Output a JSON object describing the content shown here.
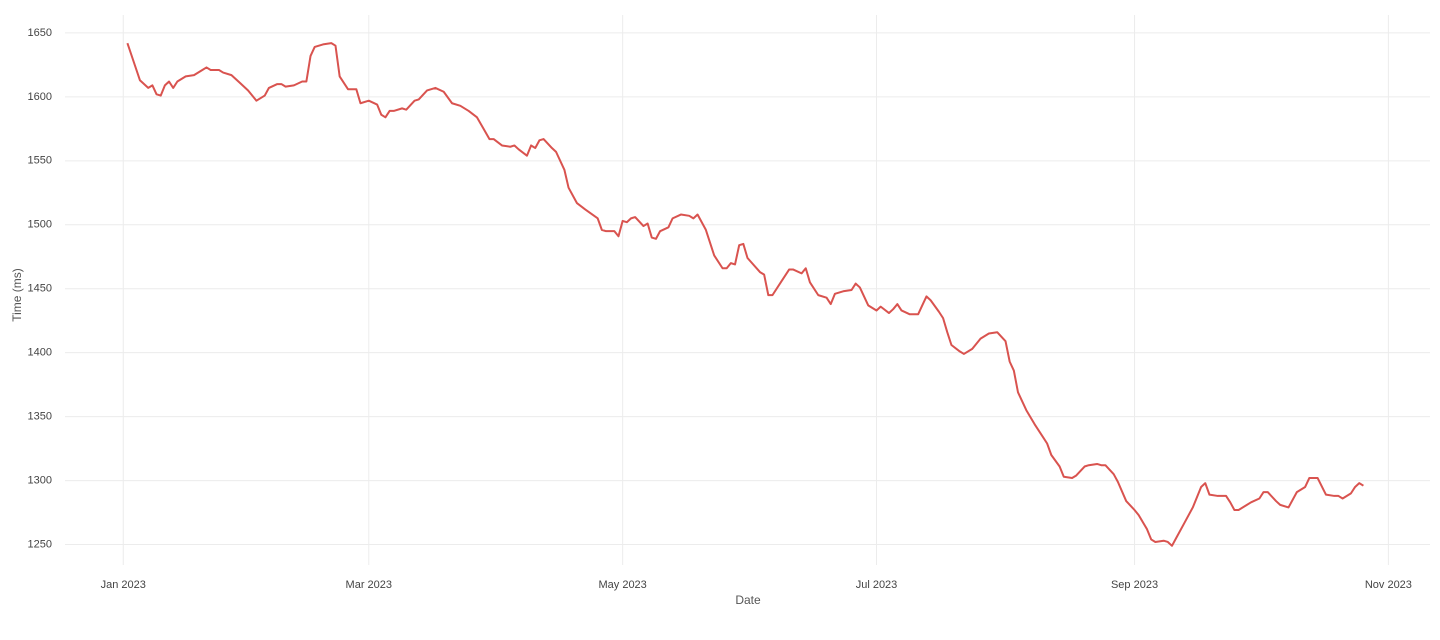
{
  "chart_data": {
    "type": "line",
    "x_label": "Date",
    "y_label": "Time (ms)",
    "xlim": [
      "2022-12-18",
      "2023-11-11"
    ],
    "xticks": [
      {
        "value": "2023-01-01",
        "label": "Jan 2023"
      },
      {
        "value": "2023-03-01",
        "label": "Mar 2023"
      },
      {
        "value": "2023-05-01",
        "label": "May 2023"
      },
      {
        "value": "2023-07-01",
        "label": "Jul 2023"
      },
      {
        "value": "2023-09-01",
        "label": "Sep 2023"
      },
      {
        "value": "2023-11-01",
        "label": "Nov 2023"
      }
    ],
    "ylim": [
      1234,
      1664
    ],
    "yticks": [
      1250,
      1300,
      1350,
      1400,
      1450,
      1500,
      1550,
      1600,
      1650
    ],
    "grid": true,
    "x": [
      "2023-01-02",
      "2023-01-05",
      "2023-01-07",
      "2023-01-08",
      "2023-01-09",
      "2023-01-10",
      "2023-01-11",
      "2023-01-12",
      "2023-01-13",
      "2023-01-14",
      "2023-01-16",
      "2023-01-18",
      "2023-01-20",
      "2023-01-21",
      "2023-01-22",
      "2023-01-24",
      "2023-01-25",
      "2023-01-27",
      "2023-01-29",
      "2023-01-31",
      "2023-02-02",
      "2023-02-04",
      "2023-02-05",
      "2023-02-07",
      "2023-02-08",
      "2023-02-09",
      "2023-02-11",
      "2023-02-13",
      "2023-02-14",
      "2023-02-15",
      "2023-02-16",
      "2023-02-18",
      "2023-02-20",
      "2023-02-21",
      "2023-02-22",
      "2023-02-24",
      "2023-02-26",
      "2023-02-27",
      "2023-03-01",
      "2023-03-03",
      "2023-03-04",
      "2023-03-05",
      "2023-03-06",
      "2023-03-07",
      "2023-03-09",
      "2023-03-10",
      "2023-03-12",
      "2023-03-13",
      "2023-03-15",
      "2023-03-17",
      "2023-03-19",
      "2023-03-21",
      "2023-03-23",
      "2023-03-25",
      "2023-03-27",
      "2023-03-30",
      "2023-03-31",
      "2023-04-02",
      "2023-04-04",
      "2023-04-05",
      "2023-04-06",
      "2023-04-08",
      "2023-04-09",
      "2023-04-10",
      "2023-04-11",
      "2023-04-12",
      "2023-04-14",
      "2023-04-15",
      "2023-04-17",
      "2023-04-18",
      "2023-04-20",
      "2023-04-22",
      "2023-04-25",
      "2023-04-26",
      "2023-04-27",
      "2023-04-29",
      "2023-04-30",
      "2023-05-01",
      "2023-05-02",
      "2023-05-03",
      "2023-05-04",
      "2023-05-06",
      "2023-05-07",
      "2023-05-08",
      "2023-05-09",
      "2023-05-10",
      "2023-05-12",
      "2023-05-13",
      "2023-05-15",
      "2023-05-17",
      "2023-05-18",
      "2023-05-19",
      "2023-05-21",
      "2023-05-23",
      "2023-05-25",
      "2023-05-26",
      "2023-05-27",
      "2023-05-28",
      "2023-05-29",
      "2023-05-30",
      "2023-05-31",
      "2023-06-03",
      "2023-06-04",
      "2023-06-05",
      "2023-06-06",
      "2023-06-08",
      "2023-06-10",
      "2023-06-11",
      "2023-06-13",
      "2023-06-14",
      "2023-06-15",
      "2023-06-17",
      "2023-06-19",
      "2023-06-20",
      "2023-06-21",
      "2023-06-23",
      "2023-06-25",
      "2023-06-26",
      "2023-06-27",
      "2023-06-29",
      "2023-07-01",
      "2023-07-02",
      "2023-07-04",
      "2023-07-05",
      "2023-07-06",
      "2023-07-07",
      "2023-07-09",
      "2023-07-11",
      "2023-07-12",
      "2023-07-13",
      "2023-07-14",
      "2023-07-16",
      "2023-07-17",
      "2023-07-18",
      "2023-07-19",
      "2023-07-21",
      "2023-07-22",
      "2023-07-24",
      "2023-07-26",
      "2023-07-28",
      "2023-07-30",
      "2023-08-01",
      "2023-08-02",
      "2023-08-03",
      "2023-08-04",
      "2023-08-06",
      "2023-08-08",
      "2023-08-10",
      "2023-08-11",
      "2023-08-12",
      "2023-08-14",
      "2023-08-15",
      "2023-08-17",
      "2023-08-18",
      "2023-08-20",
      "2023-08-21",
      "2023-08-23",
      "2023-08-24",
      "2023-08-25",
      "2023-08-27",
      "2023-08-28",
      "2023-08-30",
      "2023-09-01",
      "2023-09-02",
      "2023-09-04",
      "2023-09-05",
      "2023-09-06",
      "2023-09-08",
      "2023-09-09",
      "2023-09-10",
      "2023-09-11",
      "2023-09-13",
      "2023-09-15",
      "2023-09-16",
      "2023-09-17",
      "2023-09-18",
      "2023-09-19",
      "2023-09-21",
      "2023-09-23",
      "2023-09-24",
      "2023-09-25",
      "2023-09-26",
      "2023-09-28",
      "2023-09-29",
      "2023-10-01",
      "2023-10-02",
      "2023-10-03",
      "2023-10-05",
      "2023-10-06",
      "2023-10-08",
      "2023-10-10",
      "2023-10-12",
      "2023-10-13",
      "2023-10-15",
      "2023-10-17",
      "2023-10-19",
      "2023-10-20",
      "2023-10-21",
      "2023-10-23",
      "2023-10-24",
      "2023-10-25",
      "2023-10-26"
    ],
    "series": [
      {
        "color": "#d9534f",
        "values": [
          1642,
          1613,
          1607,
          1609,
          1602,
          1601,
          1609,
          1612,
          1607,
          1612,
          1616,
          1617,
          1621,
          1623,
          1621,
          1621,
          1619,
          1617,
          1611,
          1605,
          1597,
          1601,
          1607,
          1610,
          1610,
          1608,
          1609,
          1612,
          1612,
          1632,
          1639,
          1641,
          1642,
          1640,
          1616,
          1606,
          1606,
          1595,
          1597,
          1594,
          1586,
          1584,
          1589,
          1589,
          1591,
          1590,
          1597,
          1598,
          1605,
          1607,
          1604,
          1595,
          1593,
          1589,
          1584,
          1567,
          1567,
          1562,
          1561,
          1562,
          1559,
          1554,
          1562,
          1560,
          1566,
          1567,
          1560,
          1557,
          1543,
          1529,
          1517,
          1512,
          1505,
          1496,
          1495,
          1495,
          1491,
          1503,
          1502,
          1505,
          1506,
          1499,
          1501,
          1490,
          1489,
          1495,
          1498,
          1505,
          1508,
          1507,
          1505,
          1508,
          1496,
          1476,
          1466,
          1466,
          1470,
          1469,
          1484,
          1485,
          1474,
          1463,
          1461,
          1445,
          1445,
          1455,
          1465,
          1465,
          1462,
          1466,
          1455,
          1445,
          1443,
          1438,
          1446,
          1448,
          1449,
          1454,
          1451,
          1437,
          1433,
          1436,
          1431,
          1434,
          1438,
          1433,
          1430,
          1430,
          1437,
          1444,
          1441,
          1432,
          1427,
          1416,
          1406,
          1401,
          1399,
          1403,
          1411,
          1415,
          1416,
          1409,
          1393,
          1386,
          1369,
          1355,
          1344,
          1334,
          1329,
          1320,
          1311,
          1303,
          1302,
          1304,
          1311,
          1312,
          1313,
          1312,
          1312,
          1305,
          1299,
          1284,
          1277,
          1273,
          1262,
          1254,
          1252,
          1253,
          1252,
          1249,
          1255,
          1267,
          1279,
          1287,
          1295,
          1298,
          1289,
          1288,
          1288,
          1283,
          1277,
          1277,
          1281,
          1283,
          1286,
          1291,
          1291,
          1284,
          1281,
          1279,
          1291,
          1295,
          1302,
          1302,
          1289,
          1288,
          1288,
          1286,
          1290,
          1295,
          1298,
          1296
        ]
      }
    ]
  }
}
